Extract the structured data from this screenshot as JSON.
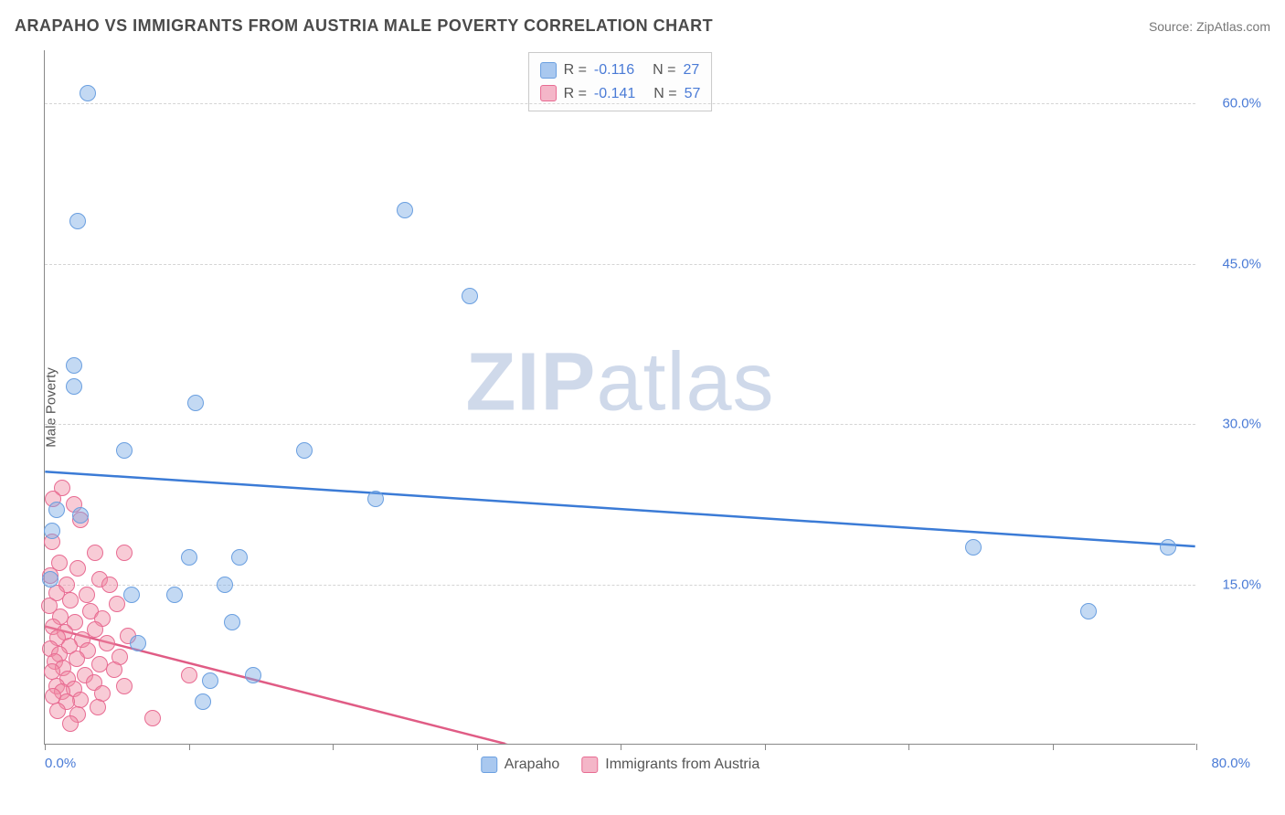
{
  "title": "ARAPAHO VS IMMIGRANTS FROM AUSTRIA MALE POVERTY CORRELATION CHART",
  "source": "Source: ZipAtlas.com",
  "y_axis_label": "Male Poverty",
  "watermark_bold": "ZIP",
  "watermark_rest": "atlas",
  "chart": {
    "type": "scatter",
    "background_color": "#ffffff",
    "grid_color": "#d5d5d5",
    "axis_color": "#888888",
    "xlim": [
      0,
      80
    ],
    "ylim": [
      0,
      65
    ],
    "x_start_label": "0.0%",
    "x_end_label": "80.0%",
    "x_ticks": [
      0,
      10,
      20,
      30,
      40,
      50,
      60,
      70,
      80
    ],
    "y_gridlines": [
      {
        "value": 15,
        "label": "15.0%"
      },
      {
        "value": 30,
        "label": "30.0%"
      },
      {
        "value": 45,
        "label": "45.0%"
      },
      {
        "value": 60,
        "label": "60.0%"
      }
    ],
    "label_color": "#4a7bd6",
    "marker_radius": 9,
    "marker_border_width": 1.5,
    "series": [
      {
        "name": "Arapaho",
        "fill_color": "rgba(122,170,228,0.45)",
        "border_color": "#6a9fe0",
        "swatch_color": "#a9c8ef",
        "R_label": "R =",
        "R_value": "-0.116",
        "N_label": "N =",
        "N_value": "27",
        "trend": {
          "x1": 0,
          "y1": 25.5,
          "x2": 80,
          "y2": 18.5,
          "color": "#3b7bd6",
          "width": 2.5
        },
        "points": [
          {
            "x": 3.0,
            "y": 61.0
          },
          {
            "x": 2.3,
            "y": 49.0
          },
          {
            "x": 25.0,
            "y": 50.0
          },
          {
            "x": 29.5,
            "y": 42.0
          },
          {
            "x": 2.0,
            "y": 35.5
          },
          {
            "x": 2.0,
            "y": 33.5
          },
          {
            "x": 10.5,
            "y": 32.0
          },
          {
            "x": 5.5,
            "y": 27.5
          },
          {
            "x": 18.0,
            "y": 27.5
          },
          {
            "x": 23.0,
            "y": 23.0
          },
          {
            "x": 0.8,
            "y": 22.0
          },
          {
            "x": 2.5,
            "y": 21.5
          },
          {
            "x": 0.5,
            "y": 20.0
          },
          {
            "x": 64.5,
            "y": 18.5
          },
          {
            "x": 78.0,
            "y": 18.5
          },
          {
            "x": 10.0,
            "y": 17.5
          },
          {
            "x": 13.5,
            "y": 17.5
          },
          {
            "x": 0.4,
            "y": 15.5
          },
          {
            "x": 12.5,
            "y": 15.0
          },
          {
            "x": 6.0,
            "y": 14.0
          },
          {
            "x": 9.0,
            "y": 14.0
          },
          {
            "x": 72.5,
            "y": 12.5
          },
          {
            "x": 13.0,
            "y": 11.5
          },
          {
            "x": 6.5,
            "y": 9.5
          },
          {
            "x": 11.5,
            "y": 6.0
          },
          {
            "x": 14.5,
            "y": 6.5
          },
          {
            "x": 11.0,
            "y": 4.0
          }
        ]
      },
      {
        "name": "Immigrants from Austria",
        "fill_color": "rgba(240,140,165,0.45)",
        "border_color": "#e86b92",
        "swatch_color": "#f4b6c8",
        "R_label": "R =",
        "R_value": "-0.141",
        "N_label": "N =",
        "N_value": "57",
        "trend": {
          "x1": 0,
          "y1": 11.0,
          "x2": 32,
          "y2": 0.0,
          "dash_to_x": 40,
          "color": "#e05c85",
          "width": 2.5
        },
        "points": [
          {
            "x": 1.2,
            "y": 24.0
          },
          {
            "x": 0.6,
            "y": 23.0
          },
          {
            "x": 2.0,
            "y": 22.5
          },
          {
            "x": 2.5,
            "y": 21.0
          },
          {
            "x": 0.5,
            "y": 19.0
          },
          {
            "x": 3.5,
            "y": 18.0
          },
          {
            "x": 5.5,
            "y": 18.0
          },
          {
            "x": 1.0,
            "y": 17.0
          },
          {
            "x": 2.3,
            "y": 16.5
          },
          {
            "x": 0.4,
            "y": 15.8
          },
          {
            "x": 3.8,
            "y": 15.5
          },
          {
            "x": 1.5,
            "y": 15.0
          },
          {
            "x": 4.5,
            "y": 15.0
          },
          {
            "x": 0.8,
            "y": 14.2
          },
          {
            "x": 2.9,
            "y": 14.0
          },
          {
            "x": 1.8,
            "y": 13.5
          },
          {
            "x": 5.0,
            "y": 13.2
          },
          {
            "x": 0.3,
            "y": 13.0
          },
          {
            "x": 3.2,
            "y": 12.5
          },
          {
            "x": 1.1,
            "y": 12.0
          },
          {
            "x": 4.0,
            "y": 11.8
          },
          {
            "x": 2.1,
            "y": 11.5
          },
          {
            "x": 0.6,
            "y": 11.0
          },
          {
            "x": 3.5,
            "y": 10.8
          },
          {
            "x": 1.4,
            "y": 10.5
          },
          {
            "x": 5.8,
            "y": 10.2
          },
          {
            "x": 0.9,
            "y": 10.0
          },
          {
            "x": 2.6,
            "y": 9.8
          },
          {
            "x": 4.3,
            "y": 9.5
          },
          {
            "x": 1.7,
            "y": 9.2
          },
          {
            "x": 0.4,
            "y": 9.0
          },
          {
            "x": 3.0,
            "y": 8.8
          },
          {
            "x": 1.0,
            "y": 8.5
          },
          {
            "x": 5.2,
            "y": 8.2
          },
          {
            "x": 2.2,
            "y": 8.0
          },
          {
            "x": 0.7,
            "y": 7.8
          },
          {
            "x": 3.8,
            "y": 7.5
          },
          {
            "x": 1.3,
            "y": 7.2
          },
          {
            "x": 4.8,
            "y": 7.0
          },
          {
            "x": 0.5,
            "y": 6.8
          },
          {
            "x": 2.8,
            "y": 6.5
          },
          {
            "x": 1.6,
            "y": 6.2
          },
          {
            "x": 10.0,
            "y": 6.5
          },
          {
            "x": 3.4,
            "y": 5.8
          },
          {
            "x": 0.8,
            "y": 5.5
          },
          {
            "x": 5.5,
            "y": 5.5
          },
          {
            "x": 2.0,
            "y": 5.2
          },
          {
            "x": 1.2,
            "y": 5.0
          },
          {
            "x": 4.0,
            "y": 4.8
          },
          {
            "x": 0.6,
            "y": 4.5
          },
          {
            "x": 2.5,
            "y": 4.2
          },
          {
            "x": 1.5,
            "y": 4.0
          },
          {
            "x": 3.7,
            "y": 3.5
          },
          {
            "x": 0.9,
            "y": 3.2
          },
          {
            "x": 2.3,
            "y": 2.8
          },
          {
            "x": 7.5,
            "y": 2.5
          },
          {
            "x": 1.8,
            "y": 2.0
          }
        ]
      }
    ]
  }
}
